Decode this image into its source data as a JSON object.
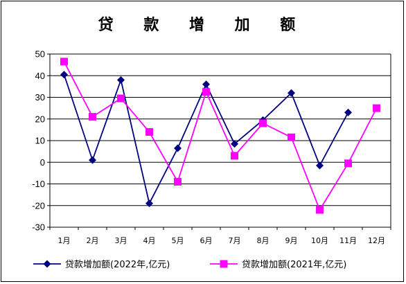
{
  "chart_data": {
    "type": "line",
    "title": "贷  款  增  加  额",
    "categories": [
      "1月",
      "2月",
      "3月",
      "4月",
      "5月",
      "6月",
      "7月",
      "8月",
      "9月",
      "10月",
      "11月",
      "12月"
    ],
    "ylim": [
      -30,
      50
    ],
    "yticks": [
      50,
      40,
      30,
      20,
      10,
      0,
      -10,
      -20,
      -30
    ],
    "grid": true,
    "legend_position": "bottom",
    "series": [
      {
        "name": "贷款增加额(2022年,亿元)",
        "color": "#000080",
        "marker": "diamond",
        "values": [
          40.5,
          1,
          38,
          -19,
          6.5,
          36,
          8.5,
          19.5,
          32,
          -1.5,
          23,
          null
        ]
      },
      {
        "name": "贷款增加额(2021年,亿元)",
        "color": "#ff00ff",
        "marker": "square",
        "values": [
          46.5,
          21,
          29.5,
          14,
          -9,
          32.5,
          3,
          18,
          11.5,
          -22,
          -0.5,
          25
        ]
      }
    ]
  }
}
